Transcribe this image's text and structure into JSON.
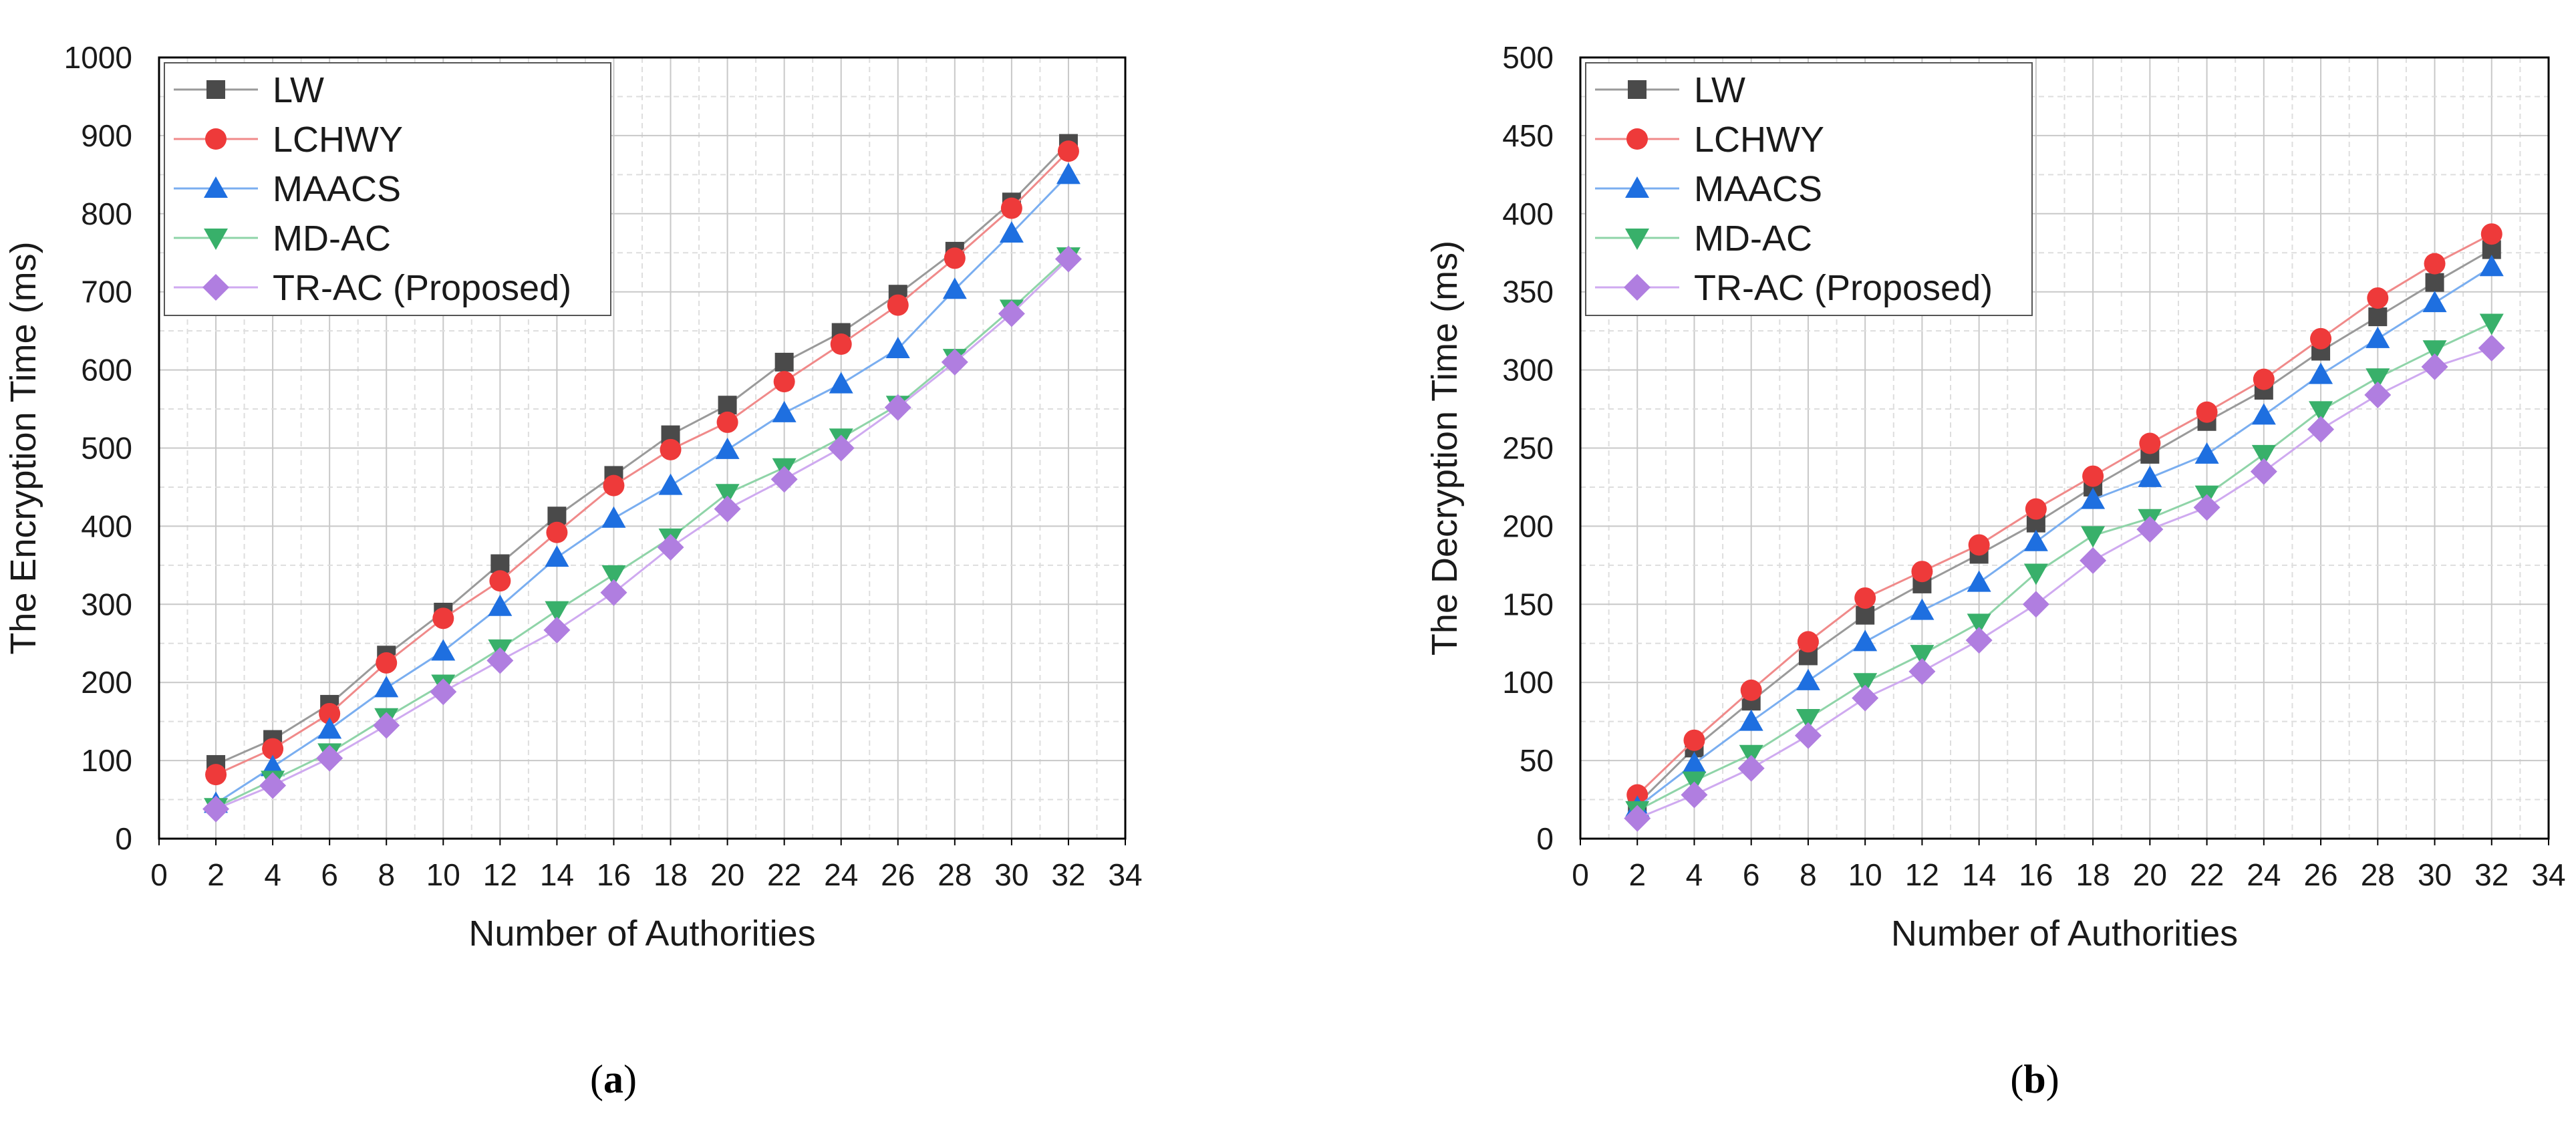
{
  "chart_data": [
    {
      "type": "line",
      "panel_label": "(a)",
      "panel_letter": "a",
      "title": "",
      "xlabel": "Number of Authorities",
      "ylabel": "The Encryption Time (ms)",
      "xlim": [
        0,
        34
      ],
      "ylim": [
        0,
        1000
      ],
      "xticks": [
        0,
        2,
        4,
        6,
        8,
        10,
        12,
        14,
        16,
        18,
        20,
        22,
        24,
        26,
        28,
        30,
        32,
        34
      ],
      "yticks": [
        0,
        100,
        200,
        300,
        400,
        500,
        600,
        700,
        800,
        900,
        1000
      ],
      "grid": true,
      "legend_position": "top-left",
      "x": [
        2,
        4,
        6,
        8,
        10,
        12,
        14,
        16,
        18,
        20,
        22,
        24,
        26,
        28,
        30,
        32
      ],
      "series": [
        {
          "name": "LW",
          "marker": "square",
          "color": "#4a4a4a",
          "line_color": "#9a9a9a",
          "values": [
            95,
            127,
            172,
            235,
            290,
            352,
            413,
            465,
            517,
            555,
            610,
            648,
            697,
            752,
            815,
            890
          ]
        },
        {
          "name": "LCHWY",
          "marker": "circle",
          "color": "#ee3a3a",
          "line_color": "#f08a8a",
          "values": [
            82,
            115,
            160,
            225,
            282,
            330,
            392,
            452,
            498,
            533,
            585,
            633,
            683,
            743,
            807,
            880
          ]
        },
        {
          "name": "MAACS",
          "marker": "triangle-up",
          "color": "#1e6fe0",
          "line_color": "#7aaef0",
          "values": [
            45,
            92,
            140,
            193,
            240,
            297,
            360,
            410,
            452,
            498,
            545,
            582,
            627,
            703,
            775,
            850
          ]
        },
        {
          "name": "MD-AC",
          "marker": "triangle-down",
          "color": "#38b06a",
          "line_color": "#8fd4a8",
          "values": [
            40,
            75,
            110,
            155,
            198,
            243,
            292,
            338,
            385,
            442,
            475,
            513,
            555,
            615,
            678,
            745
          ]
        },
        {
          "name": "TR-AC (Proposed)",
          "marker": "diamond",
          "color": "#b07ee0",
          "line_color": "#cfaaf0",
          "values": [
            38,
            68,
            103,
            145,
            188,
            228,
            267,
            315,
            373,
            422,
            460,
            500,
            552,
            610,
            672,
            742
          ]
        }
      ]
    },
    {
      "type": "line",
      "panel_label": "(b)",
      "panel_letter": "b",
      "title": "",
      "xlabel": "Number of Authorities",
      "ylabel": "The Decryption Time (ms)",
      "xlim": [
        0,
        34
      ],
      "ylim": [
        0,
        500
      ],
      "xticks": [
        0,
        2,
        4,
        6,
        8,
        10,
        12,
        14,
        16,
        18,
        20,
        22,
        24,
        26,
        28,
        30,
        32,
        34
      ],
      "yticks": [
        0,
        50,
        100,
        150,
        200,
        250,
        300,
        350,
        400,
        450,
        500
      ],
      "grid": true,
      "legend_position": "top-left",
      "x": [
        2,
        4,
        6,
        8,
        10,
        12,
        14,
        16,
        18,
        20,
        22,
        24,
        26,
        28,
        30,
        32
      ],
      "series": [
        {
          "name": "LW",
          "marker": "square",
          "color": "#4a4a4a",
          "line_color": "#9a9a9a",
          "values": [
            22,
            58,
            88,
            117,
            143,
            163,
            182,
            202,
            225,
            246,
            267,
            287,
            312,
            334,
            356,
            377
          ]
        },
        {
          "name": "LCHWY",
          "marker": "circle",
          "color": "#ee3a3a",
          "line_color": "#f08a8a",
          "values": [
            28,
            63,
            95,
            126,
            154,
            171,
            188,
            211,
            232,
            253,
            273,
            294,
            320,
            346,
            368,
            387
          ]
        },
        {
          "name": "MAACS",
          "marker": "triangle-up",
          "color": "#1e6fe0",
          "line_color": "#7aaef0",
          "values": [
            20,
            48,
            75,
            101,
            126,
            146,
            164,
            190,
            217,
            231,
            246,
            271,
            297,
            320,
            343,
            366
          ]
        },
        {
          "name": "MD-AC",
          "marker": "triangle-down",
          "color": "#38b06a",
          "line_color": "#8fd4a8",
          "values": [
            18,
            37,
            54,
            77,
            100,
            118,
            138,
            170,
            194,
            205,
            220,
            246,
            274,
            295,
            313,
            330
          ]
        },
        {
          "name": "TR-AC (Proposed)",
          "marker": "diamond",
          "color": "#b07ee0",
          "line_color": "#cfaaf0",
          "values": [
            13,
            28,
            45,
            66,
            90,
            107,
            127,
            150,
            178,
            198,
            212,
            235,
            262,
            284,
            302,
            314
          ]
        }
      ]
    }
  ]
}
